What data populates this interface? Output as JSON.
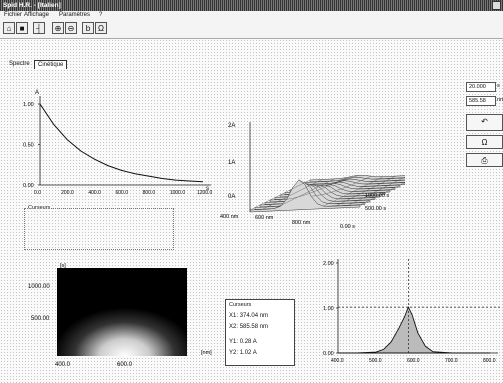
{
  "window": {
    "title": "Spid H.R. - [Italien]"
  },
  "menu": {
    "items": [
      "Fichier",
      "Affichage",
      "Paramètres",
      "?"
    ]
  },
  "toolbar": {
    "buttons": [
      "file-open",
      "save",
      "cursor",
      "zoom-in",
      "zoom-out",
      "text",
      "sigma"
    ]
  },
  "tabs": {
    "items": [
      "Spectre",
      "Cinétique"
    ]
  },
  "side_panel": {
    "field1": "20.000",
    "field2": "585.58",
    "unit1": "s",
    "unit2": "nm"
  },
  "cursor_panel": {
    "title": "Curseurs",
    "x1_label": "X1:",
    "x1_value": "374.04",
    "x1_unit": "nm",
    "x2_label": "X2:",
    "x2_value": "585.58",
    "x2_unit": "nm",
    "y1_label": "Y1:",
    "y1_value": "0.28",
    "y1_unit": "A",
    "y2_label": "Y2:",
    "y2_value": "1.02",
    "y2_unit": "A"
  },
  "cursor_panel_left": {
    "title": "Curseurs"
  },
  "chart_data": [
    {
      "type": "line",
      "ylabel": "A",
      "xlabel": "s",
      "xlim": [
        0,
        1200
      ],
      "ylim": [
        0,
        1.0
      ],
      "x_ticks": [
        "0.0",
        "200.0",
        "400.0",
        "600.0",
        "800.0",
        "1000.0",
        "1200.0"
      ],
      "y_ticks": [
        "1.00",
        "0.50",
        "0.00"
      ],
      "x": [
        0,
        100,
        200,
        300,
        400,
        500,
        600,
        700,
        800,
        900,
        1000,
        1100,
        1200
      ],
      "values": [
        1.0,
        0.75,
        0.56,
        0.42,
        0.32,
        0.24,
        0.18,
        0.14,
        0.11,
        0.08,
        0.06,
        0.05,
        0.04
      ]
    },
    {
      "type": "area",
      "surface": "3d",
      "z_ticks": [
        "2A",
        "1A",
        "0A"
      ],
      "x_ticks": [
        "400 nm",
        "600 nm",
        "800 nm"
      ],
      "y_ticks": [
        "1000.00 s",
        "500.00 s",
        "0.00 s"
      ]
    },
    {
      "type": "heatmap",
      "ylabel": "[s]",
      "xlabel": "[nm]",
      "x_ticks": [
        "400.0",
        "600.0"
      ],
      "y_ticks": [
        "1000.00",
        "500.00"
      ]
    },
    {
      "type": "area",
      "ylim": [
        0,
        2
      ],
      "xlim": [
        400,
        800
      ],
      "y_ticks": [
        "2.00",
        "1.00",
        "0.00"
      ],
      "x_ticks": [
        "400.0",
        "500.0",
        "600.0",
        "700.0",
        "800.0"
      ],
      "x": [
        400,
        450,
        500,
        520,
        540,
        560,
        575,
        585,
        595,
        610,
        630,
        650,
        700,
        800
      ],
      "values": [
        0.0,
        0.0,
        0.02,
        0.08,
        0.25,
        0.55,
        0.8,
        1.02,
        0.85,
        0.45,
        0.15,
        0.03,
        0.0,
        0.0
      ],
      "cursor_x": 585.58,
      "cursor_y": 1.02
    }
  ]
}
